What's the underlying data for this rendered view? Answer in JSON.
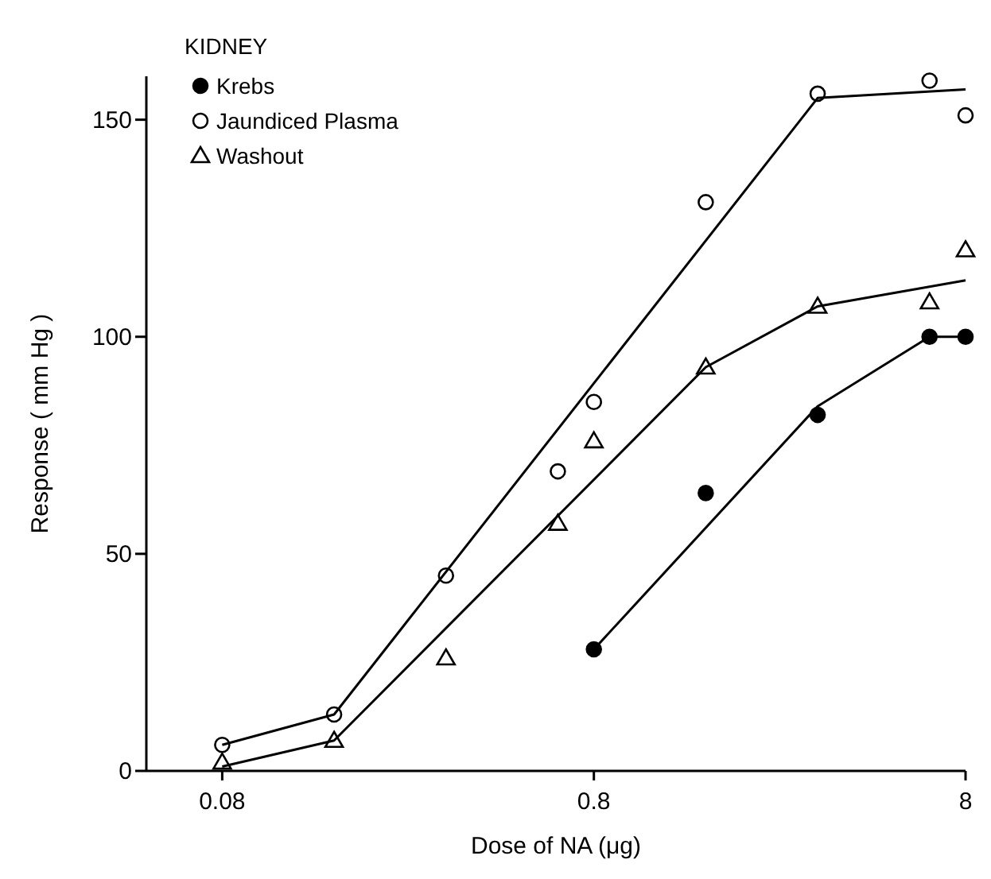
{
  "chart_data": {
    "type": "scatter",
    "xlabel": "Dose of NA (μg)",
    "ylabel": "Response ( mm Hg )",
    "legend_title": "KIDNEY",
    "legend": "top left",
    "log": "x",
    "xlim": [
      0.05,
      8
    ],
    "xticks": [
      0.08,
      0.8,
      8
    ],
    "ylim": [
      0,
      160
    ],
    "yticks": [
      0,
      50,
      100,
      150
    ],
    "grid": false,
    "series": [
      {
        "name": "Krebs",
        "color": "#000000",
        "marker": "circle",
        "x": [
          0.8,
          1.6,
          3.2,
          6.4,
          8
        ],
        "values": [
          28,
          64,
          82,
          100,
          100
        ]
      },
      {
        "name": "Jaundiced Plasma",
        "color": "#000000",
        "marker": "circle",
        "x": [
          0.08,
          0.16,
          0.32,
          0.64,
          0.8,
          1.6,
          3.2,
          6.4,
          8
        ],
        "values": [
          6,
          13,
          45,
          69,
          85,
          131,
          156,
          159,
          151
        ]
      },
      {
        "name": "Washout",
        "color": "#000000",
        "marker": "triangle",
        "x": [
          0.08,
          0.16,
          0.32,
          0.64,
          0.8,
          1.6,
          3.2,
          6.4,
          8
        ],
        "values": [
          2,
          7,
          26,
          57,
          76,
          93,
          107,
          108,
          120
        ]
      },
      {
        "type": "line",
        "color": "#000000",
        "marker": "none",
        "x": [
          0.8,
          3.2,
          6.4,
          8
        ],
        "values": [
          28,
          84,
          100,
          100
        ]
      },
      {
        "type": "line",
        "color": "#000000",
        "marker": "none",
        "x": [
          0.08,
          0.16,
          3.2,
          8
        ],
        "values": [
          6,
          13,
          155,
          157
        ]
      },
      {
        "type": "line",
        "color": "#000000",
        "marker": "none",
        "x": [
          0.08,
          0.16,
          1.6,
          3.2,
          8
        ],
        "values": [
          1,
          7,
          93,
          107,
          113
        ]
      }
    ]
  }
}
